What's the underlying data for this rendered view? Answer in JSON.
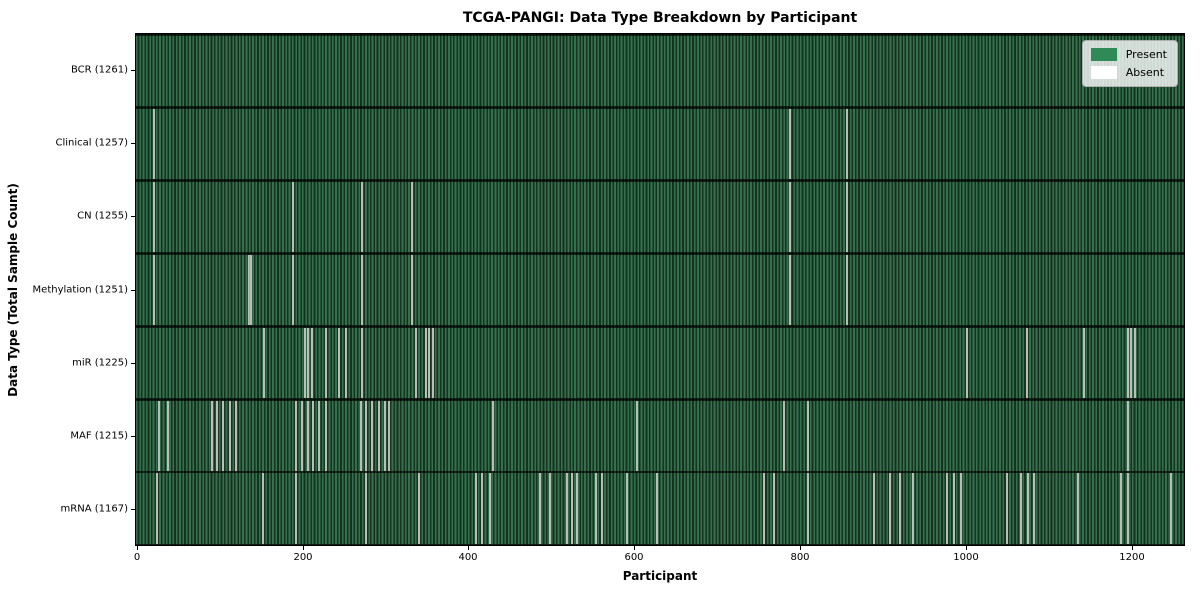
{
  "chart_data": {
    "type": "heatmap",
    "title": "TCGA-PANGI: Data Type Breakdown by Participant",
    "xlabel": "Participant",
    "ylabel": "Data Type (Total Sample Count)",
    "x_axis": {
      "min": -2,
      "max": 1264,
      "ticks": [
        0,
        200,
        400,
        600,
        800,
        1000,
        1200
      ]
    },
    "legend": [
      {
        "label": "Present",
        "color": "#2e8b57"
      },
      {
        "label": "Absent",
        "color": "#ffffff"
      }
    ],
    "colors": {
      "present": "#2e8b57",
      "present_stripe_light": "#35704f",
      "present_stripe_dark": "#16331f",
      "absent_line": "#b7bfb7"
    },
    "rows": [
      {
        "data_type": "BCR",
        "label": "BCR (1261)",
        "total": 1261,
        "absent_positions": []
      },
      {
        "data_type": "Clinical",
        "label": "Clinical (1257)",
        "total": 1257,
        "absent_positions": [
          18,
          787,
          856
        ]
      },
      {
        "data_type": "CN",
        "label": "CN (1255)",
        "total": 1255,
        "absent_positions": [
          18,
          187,
          270,
          330,
          787,
          856
        ]
      },
      {
        "data_type": "Methylation",
        "label": "Methylation (1251)",
        "total": 1251,
        "absent_positions": [
          18,
          133,
          136,
          187,
          270,
          330,
          787,
          856
        ]
      },
      {
        "data_type": "miR",
        "label": "miR (1225)",
        "total": 1225,
        "absent_positions": [
          152,
          201,
          205,
          209,
          226,
          242,
          250,
          270,
          335,
          347,
          351,
          356,
          1001,
          1073,
          1142,
          1195,
          1199,
          1204
        ]
      },
      {
        "data_type": "MAF",
        "label": "MAF (1215)",
        "total": 1215,
        "absent_positions": [
          24,
          36,
          89,
          95,
          102,
          110,
          117,
          190,
          197,
          204,
          211,
          218,
          226,
          268,
          275,
          282,
          290,
          297,
          302,
          428,
          602,
          779,
          808,
          1195
        ]
      },
      {
        "data_type": "mRNA",
        "label": "mRNA (1167)",
        "total": 1167,
        "absent_positions": [
          22,
          150,
          190,
          275,
          339,
          408,
          415,
          424,
          485,
          497,
          517,
          523,
          530,
          553,
          560,
          590,
          626,
          755,
          767,
          808,
          888,
          908,
          920,
          936,
          977,
          985,
          993,
          1049,
          1066,
          1074,
          1082,
          1135,
          1187,
          1195,
          1247
        ]
      }
    ]
  }
}
